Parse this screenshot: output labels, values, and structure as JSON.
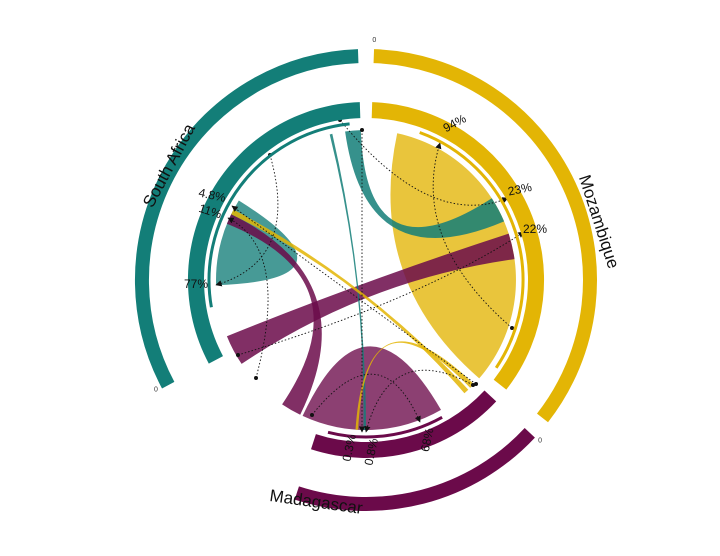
{
  "chart_data": {
    "type": "chord",
    "title": "",
    "regions": [
      {
        "name": "Mozambique",
        "color": "#e3b505"
      },
      {
        "name": "Madagascar",
        "color": "#6b0a4a"
      },
      {
        "name": "South Africa",
        "color": "#137e78"
      }
    ],
    "flows": [
      {
        "from": "Mozambique",
        "to": "Mozambique",
        "percent": "94%",
        "color": "#e3b505"
      },
      {
        "from": "South Africa",
        "to": "Mozambique",
        "percent": "23%",
        "color": "#137e78"
      },
      {
        "from": "Madagascar",
        "to": "Mozambique",
        "percent": "22%",
        "color": "#6b0a4a"
      },
      {
        "from": "Madagascar",
        "to": "Madagascar",
        "percent": "68%",
        "color": "#6b0a4a"
      },
      {
        "from": "South Africa",
        "to": "Madagascar",
        "percent": "0.3%",
        "color": "#137e78"
      },
      {
        "from": "Mozambique",
        "to": "Madagascar",
        "percent": "0.8%",
        "color": "#e3b505"
      },
      {
        "from": "South Africa",
        "to": "South Africa",
        "percent": "77%",
        "color": "#137e78"
      },
      {
        "from": "Madagascar",
        "to": "South Africa",
        "percent": "11%",
        "color": "#6b0a4a"
      },
      {
        "from": "Mozambique",
        "to": "South Africa",
        "percent": "4.8%",
        "color": "#e3b505"
      }
    ],
    "axis_zero_label": "0"
  }
}
